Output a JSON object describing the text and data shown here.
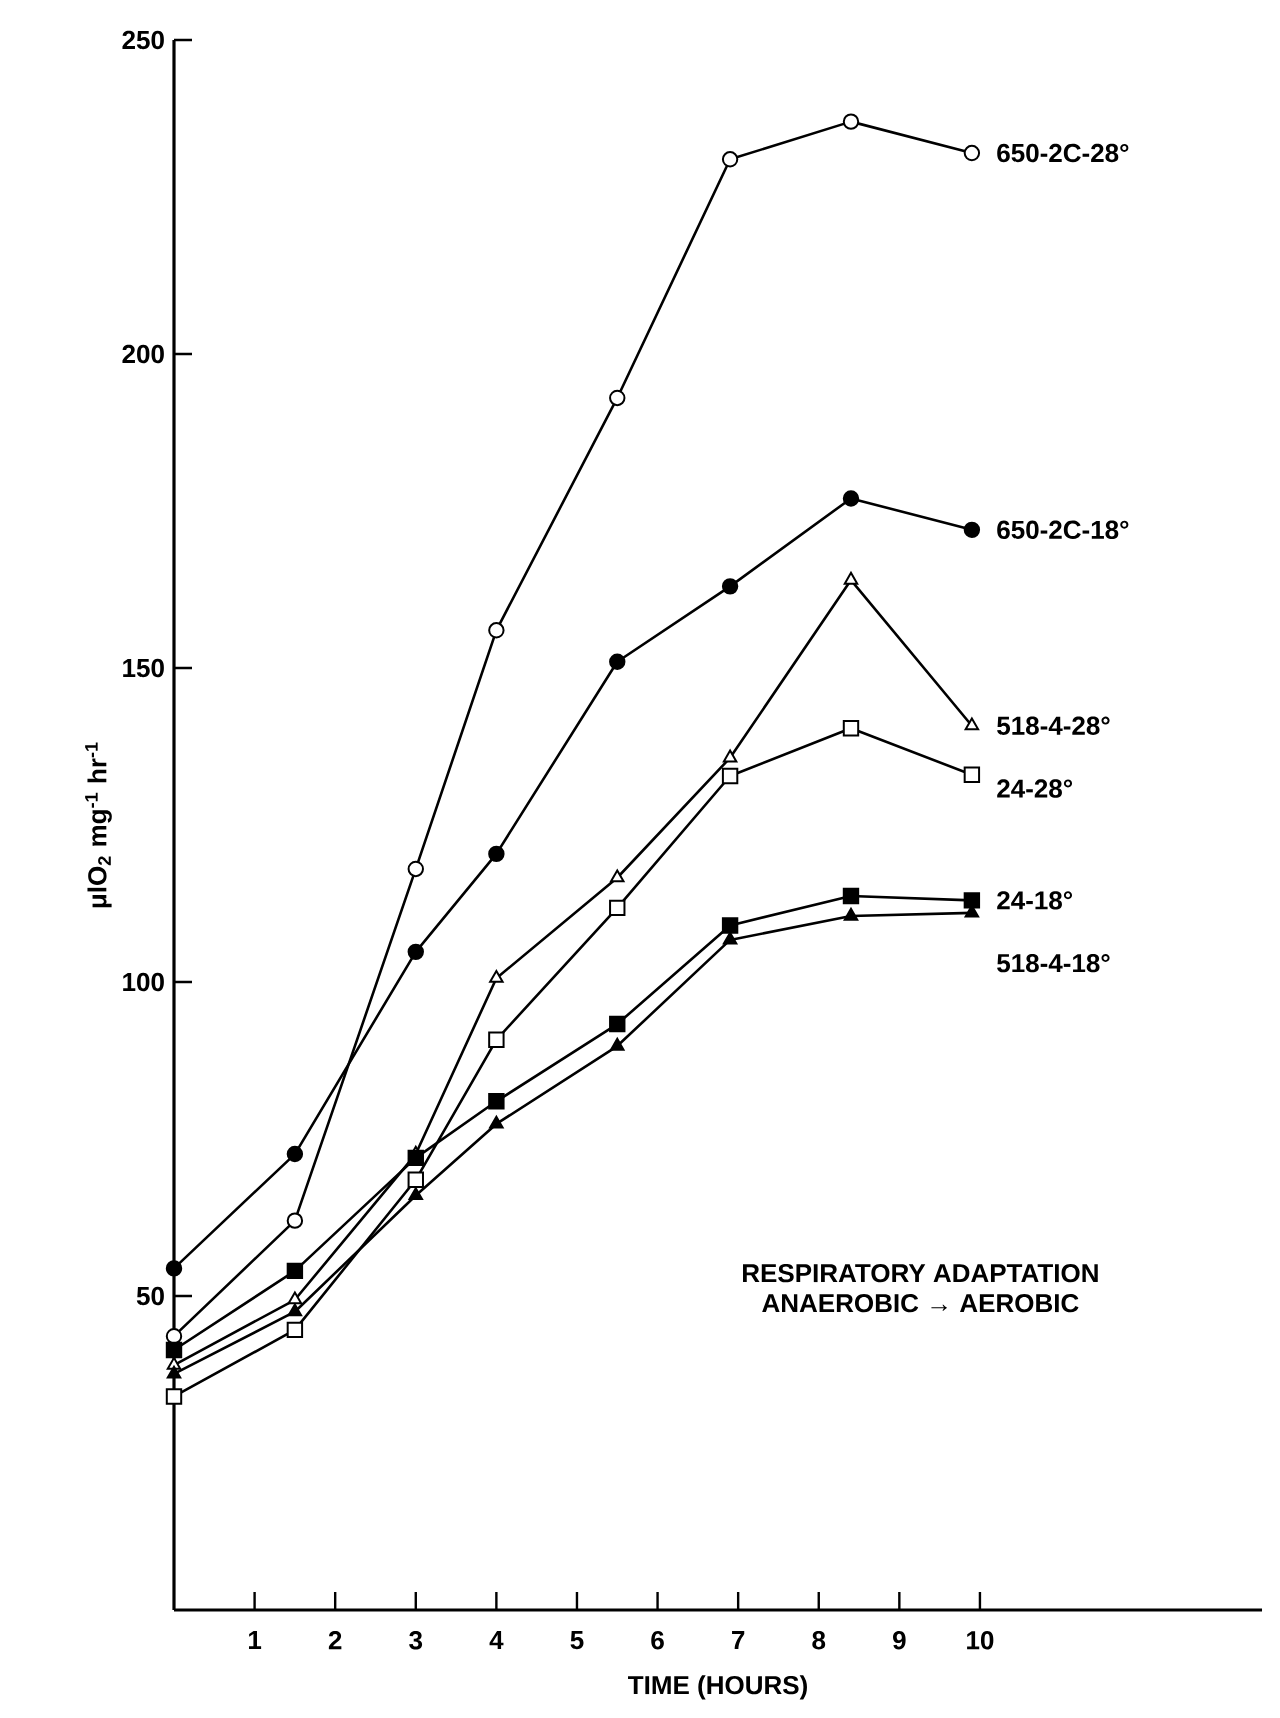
{
  "chart_data": {
    "type": "line",
    "xlabel": "TIME (HOURS)",
    "ylabel": "μlO$_{2}$ mg$^{-1}$ hr$^{-1}$",
    "x": [
      0,
      1.5,
      3,
      4,
      5.5,
      6.9,
      8.4,
      9.9
    ],
    "series": [
      {
        "name": "650-2C-28°",
        "color": "#000000",
        "marker": "circle",
        "colors": [
          "#ffffff",
          "#ffffff",
          "#ffffff",
          "#ffffff",
          "#ffffff",
          "#ffffff",
          "#ffffff",
          "#ffffff"
        ],
        "values": [
          43.6,
          62,
          118,
          156,
          193,
          231,
          237,
          232
        ]
      },
      {
        "name": "650-2C-18°",
        "color": "#000000",
        "marker": "circle",
        "colors": [
          "#000000",
          "#000000",
          "#000000",
          "#000000",
          "#000000",
          "#000000",
          "#000000",
          "#000000"
        ],
        "values": [
          54.4,
          72.6,
          104.8,
          120.4,
          151,
          163,
          177,
          172
        ]
      },
      {
        "name": "518-4-28°",
        "color": "#000000",
        "marker": "triangle",
        "colors": [
          "#ffffff",
          "#ffffff",
          "#ffffff",
          "#ffffff",
          "#ffffff",
          "#ffffff",
          "#ffffff",
          "#ffffff"
        ],
        "values": [
          39,
          49.4,
          72.6,
          100.6,
          116.6,
          135.7,
          164,
          140.8
        ]
      },
      {
        "name": "24-28°",
        "color": "#000000",
        "marker": "square",
        "colors": [
          "#ffffff",
          "#ffffff",
          "#ffffff",
          "#ffffff",
          "#ffffff",
          "#ffffff",
          "#ffffff",
          "#ffffff"
        ],
        "values": [
          34,
          44.6,
          68.5,
          90.8,
          111.8,
          132.8,
          140.4,
          133
        ]
      },
      {
        "name": "24-18°",
        "color": "#000000",
        "marker": "square",
        "colors": [
          "#000000",
          "#000000",
          "#000000",
          "#000000",
          "#000000",
          "#000000",
          "#000000",
          "#000000"
        ],
        "values": [
          41.4,
          54,
          72,
          81,
          93.3,
          109,
          113.7,
          113
        ]
      },
      {
        "name": "518-4-18°",
        "color": "#000000",
        "marker": "triangle",
        "colors": [
          "#000000",
          "#000000",
          "#000000",
          "#000000",
          "#000000",
          "#000000",
          "#000000",
          "#000000"
        ],
        "values": [
          37.6,
          47.5,
          66,
          77.4,
          89.8,
          106.7,
          110.5,
          111
        ]
      }
    ],
    "xlim": [
      0,
      13.5
    ],
    "ylim": [
      0,
      250
    ],
    "xticks": [
      1,
      2,
      3,
      4,
      5,
      6,
      7,
      8,
      9,
      10
    ],
    "yticks": [
      50,
      100,
      150,
      200,
      250
    ],
    "annotations": [
      "RESPIRATORY ADAPTATION",
      "ANAEROBIC → AEROBIC"
    ],
    "line_style": "solid"
  }
}
